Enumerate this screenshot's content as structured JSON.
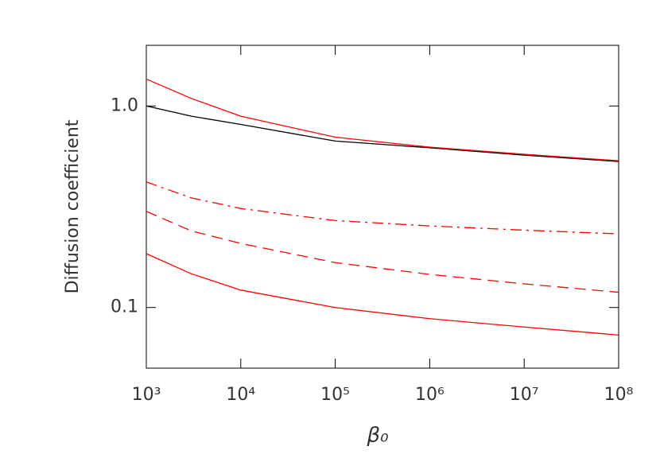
{
  "chart_data": {
    "type": "line",
    "xlabel": "β₀",
    "ylabel": "Diffusion coefficient",
    "xscale": "log",
    "yscale": "log",
    "x": [
      1000,
      3000,
      10000,
      100000,
      1000000,
      10000000,
      100000000
    ],
    "series": [
      {
        "color": "#000000",
        "dash": "solid",
        "values": [
          1.0,
          0.89,
          0.81,
          0.67,
          0.62,
          0.57,
          0.53
        ]
      },
      {
        "color": "#ff0000",
        "dash": "solid",
        "values": [
          1.36,
          1.09,
          0.89,
          0.7,
          0.625,
          0.576,
          0.535
        ]
      },
      {
        "color": "#ff0000",
        "dash": "dashdot",
        "values": [
          0.42,
          0.35,
          0.31,
          0.27,
          0.254,
          0.242,
          0.232
        ]
      },
      {
        "color": "#ff0000",
        "dash": "dashed",
        "values": [
          0.3,
          0.24,
          0.208,
          0.167,
          0.146,
          0.131,
          0.119
        ]
      },
      {
        "color": "#ff0000",
        "dash": "solid",
        "values": [
          0.185,
          0.147,
          0.122,
          0.1,
          0.088,
          0.08,
          0.073
        ]
      }
    ],
    "xlim": [
      1000,
      100000000
    ],
    "xticks": [
      {
        "value": 1000,
        "label": "10³"
      },
      {
        "value": 10000,
        "label": "10⁴"
      },
      {
        "value": 100000,
        "label": "10⁵"
      },
      {
        "value": 1000000,
        "label": "10⁶"
      },
      {
        "value": 10000000,
        "label": "10⁷"
      },
      {
        "value": 100000000,
        "label": "10⁸"
      }
    ],
    "ylim": [
      0.05,
      2
    ],
    "yticks": [
      0.1,
      {
        "value": 1,
        "label": "1.0"
      }
    ]
  }
}
